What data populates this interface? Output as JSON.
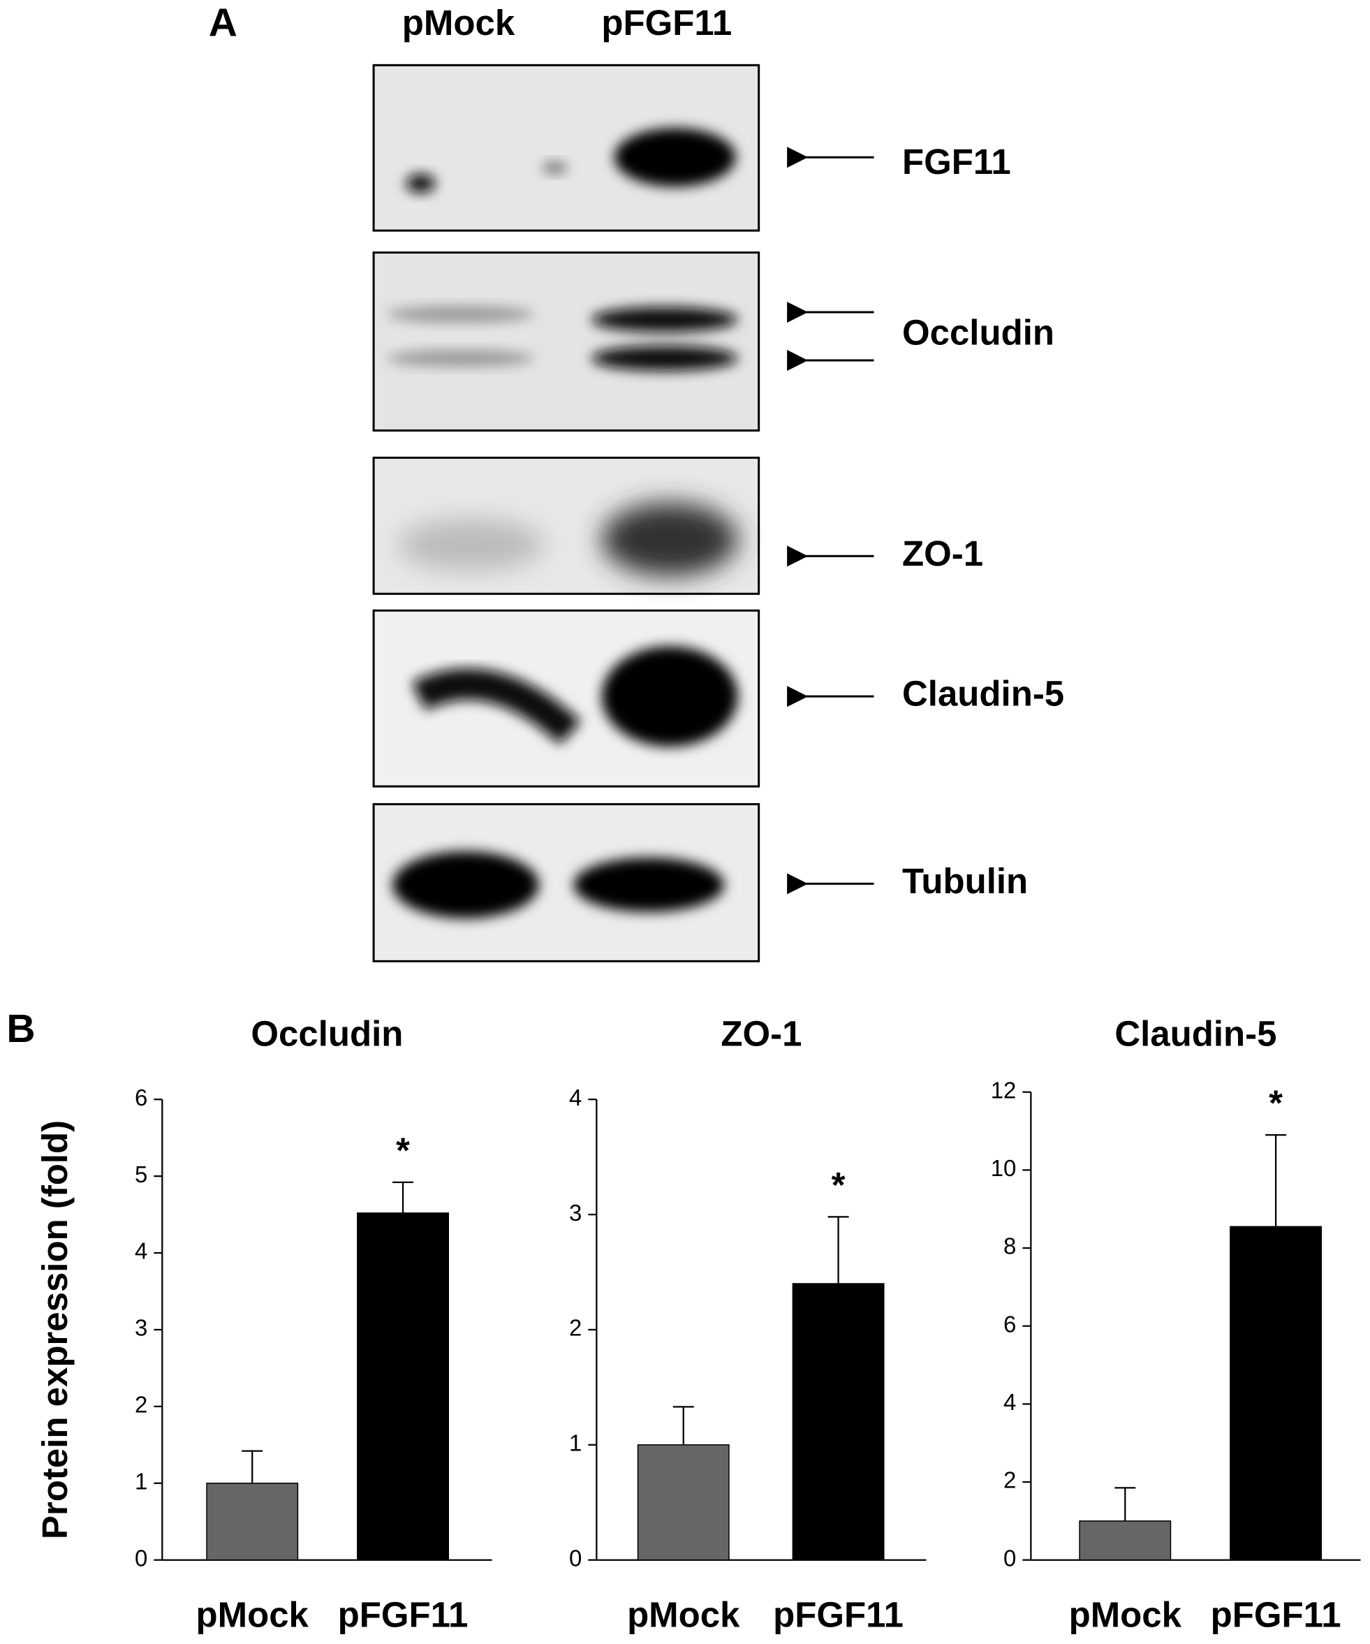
{
  "panel_a": {
    "label": "A",
    "lanes": [
      "pMock",
      "pFGF11"
    ],
    "bands": [
      "FGF11",
      "Occludin",
      "ZO-1",
      "Claudin-5",
      "Tubulin"
    ]
  },
  "panel_b": {
    "label": "B",
    "ylabel": "Protein expression (fold)"
  },
  "chart_data": [
    {
      "type": "bar",
      "title": "Occludin",
      "categories": [
        "pMock",
        "pFGF11"
      ],
      "values": [
        1.0,
        4.52
      ],
      "errors": [
        0.42,
        0.4
      ],
      "colors": [
        "#666666",
        "#000000"
      ],
      "ylim": [
        0,
        6
      ],
      "yticks": [
        0,
        1,
        2,
        3,
        4,
        5,
        6
      ],
      "annotations": [
        {
          "category": "pFGF11",
          "text": "*"
        }
      ]
    },
    {
      "type": "bar",
      "title": "ZO-1",
      "categories": [
        "pMock",
        "pFGF11"
      ],
      "values": [
        1.0,
        2.4
      ],
      "errors": [
        0.33,
        0.58
      ],
      "colors": [
        "#666666",
        "#000000"
      ],
      "ylim": [
        0,
        4
      ],
      "yticks": [
        0,
        1,
        2,
        3,
        4
      ],
      "annotations": [
        {
          "category": "pFGF11",
          "text": "*"
        }
      ]
    },
    {
      "type": "bar",
      "title": "Claudin-5",
      "categories": [
        "pMock",
        "pFGF11"
      ],
      "values": [
        1.0,
        8.55
      ],
      "errors": [
        0.85,
        2.35
      ],
      "colors": [
        "#666666",
        "#000000"
      ],
      "ylim": [
        0,
        12
      ],
      "yticks": [
        0,
        2,
        4,
        6,
        8,
        10,
        12
      ],
      "annotations": [
        {
          "category": "pFGF11",
          "text": "*"
        }
      ]
    }
  ]
}
